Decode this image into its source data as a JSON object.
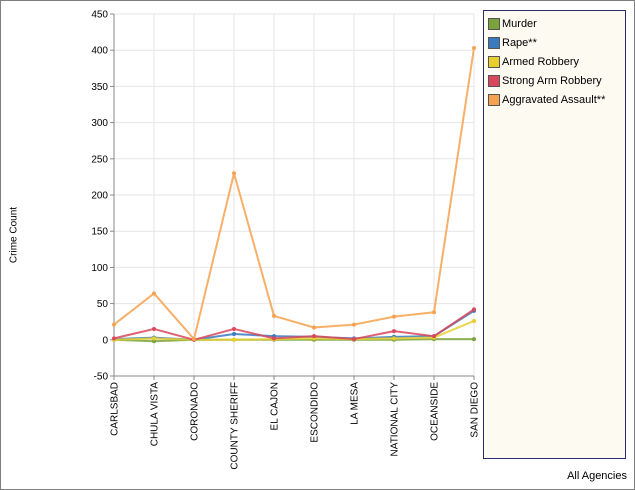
{
  "chart_data": {
    "type": "line",
    "ylabel": "Crime Count",
    "ylim": [
      -50,
      450
    ],
    "yticks": [
      -50,
      0,
      50,
      100,
      150,
      200,
      250,
      300,
      350,
      400,
      450
    ],
    "categories": [
      "CARLSBAD",
      "CHULA VISTA",
      "CORONADO",
      "COUNTY SHERIFF",
      "EL CAJON",
      "ESCONDIDO",
      "LA MESA",
      "NATIONAL CITY",
      "OCEANSIDE",
      "SAN DIEGO"
    ],
    "grid": true,
    "legend_position": "right",
    "series": [
      {
        "name": "Murder",
        "color": "#7aa33a",
        "values": [
          0,
          -2,
          0,
          0,
          0,
          0,
          0,
          0,
          1,
          1
        ]
      },
      {
        "name": "Rape**",
        "color": "#3a7abf",
        "values": [
          1,
          3,
          0,
          8,
          5,
          4,
          2,
          4,
          5,
          40
        ]
      },
      {
        "name": "Armed Robbery",
        "color": "#e8cf2e",
        "values": [
          0,
          2,
          0,
          0,
          1,
          2,
          1,
          2,
          3,
          26
        ]
      },
      {
        "name": "Strong Arm Robbery",
        "color": "#d9475a",
        "values": [
          2,
          15,
          0,
          15,
          2,
          5,
          1,
          12,
          5,
          42
        ]
      },
      {
        "name": "Aggravated Assault**",
        "color": "#f7a14e",
        "values": [
          21,
          64,
          1,
          230,
          33,
          17,
          21,
          32,
          38,
          403
        ]
      }
    ]
  },
  "footer": {
    "text": "All Agencies"
  }
}
